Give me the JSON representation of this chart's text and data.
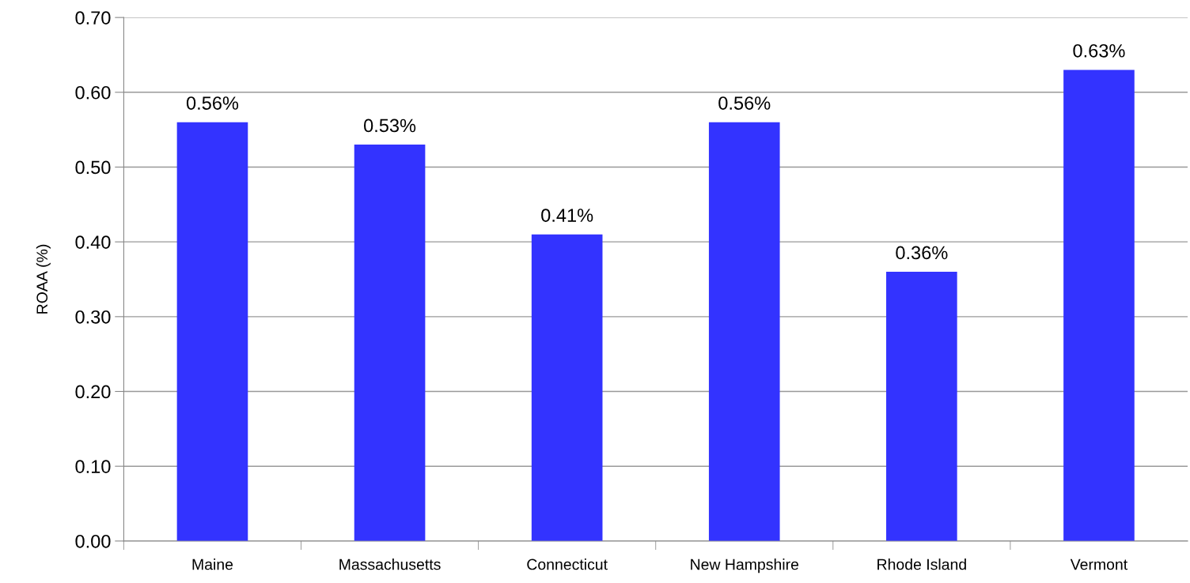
{
  "chart_data": {
    "type": "bar",
    "ylabel": "ROAA (%)",
    "categories": [
      "Maine",
      "Massachusetts",
      "Connecticut",
      "New Hampshire",
      "Rhode Island",
      "Vermont"
    ],
    "values": [
      0.56,
      0.53,
      0.41,
      0.56,
      0.36,
      0.63
    ],
    "value_labels": [
      "0.56%",
      "0.53%",
      "0.41%",
      "0.56%",
      "0.36%",
      "0.63%"
    ],
    "color": "#3333ff",
    "ylim": [
      0,
      0.7
    ],
    "yticks": [
      {
        "value": 0,
        "label": "0.00"
      },
      {
        "value": 0.1,
        "label": "0.10"
      },
      {
        "value": 0.2,
        "label": "0.20"
      },
      {
        "value": 0.3,
        "label": "0.30"
      },
      {
        "value": 0.4,
        "label": "0.40"
      },
      {
        "value": 0.5,
        "label": "0.50"
      },
      {
        "value": 0.6,
        "label": "0.60"
      },
      {
        "value": 0.7,
        "label": "0.70"
      }
    ],
    "grid": "y"
  }
}
